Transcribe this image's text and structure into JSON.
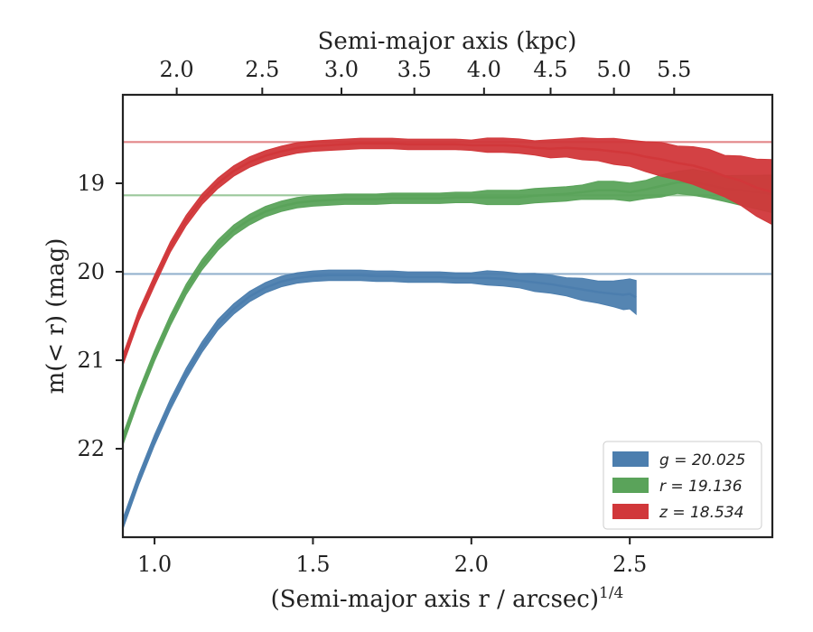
{
  "chart_data": {
    "type": "line",
    "xlabel": "(Semi-major axis r / arcsec)",
    "xlabel_sup": "1/4",
    "ylabel": "m(< r) (mag)",
    "top_xlabel": "Semi-major axis (kpc)",
    "xlim": [
      0.9,
      2.95
    ],
    "ylim": [
      23.0,
      18.0
    ],
    "y_inverted": true,
    "x_ticks": [
      1.0,
      1.5,
      2.0,
      2.5
    ],
    "x_tick_labels": [
      "1.0",
      "1.5",
      "2.0",
      "2.5"
    ],
    "y_ticks": [
      19,
      20,
      21,
      22
    ],
    "y_tick_labels": [
      "19",
      "20",
      "21",
      "22"
    ],
    "top_ticks_kpc": [
      2.0,
      2.5,
      3.0,
      3.5,
      4.0,
      4.5,
      5.0,
      5.5
    ],
    "top_tick_labels": [
      "2.0",
      "2.5",
      "3.0",
      "3.5",
      "4.0",
      "4.5",
      "5.0",
      "5.5"
    ],
    "top_tick_x_positions": [
      1.07,
      1.34,
      1.59,
      1.82,
      2.04,
      2.25,
      2.45,
      2.64
    ],
    "legend_position": "lower-right",
    "series": [
      {
        "key": "g",
        "name": "g = 20.025",
        "legend_label": "g = 20.025",
        "color": "#4c7eae",
        "asymptote": 20.025,
        "x": [
          0.9,
          0.95,
          1.0,
          1.05,
          1.1,
          1.15,
          1.2,
          1.25,
          1.3,
          1.35,
          1.4,
          1.45,
          1.5,
          1.55,
          1.6,
          1.65,
          1.7,
          1.75,
          1.8,
          1.85,
          1.9,
          1.95,
          2.0,
          2.05,
          2.1,
          2.15,
          2.2,
          2.25,
          2.3,
          2.35,
          2.4,
          2.45,
          2.48,
          2.5,
          2.52
        ],
        "y": [
          22.85,
          22.35,
          21.9,
          21.5,
          21.15,
          20.85,
          20.6,
          20.42,
          20.28,
          20.18,
          20.11,
          20.07,
          20.05,
          20.04,
          20.04,
          20.04,
          20.05,
          20.05,
          20.06,
          20.06,
          20.06,
          20.07,
          20.07,
          20.07,
          20.08,
          20.1,
          20.12,
          20.14,
          20.17,
          20.2,
          20.23,
          20.25,
          20.26,
          20.25,
          20.29
        ],
        "halfwidth": [
          0.02,
          0.02,
          0.02,
          0.02,
          0.02,
          0.02,
          0.02,
          0.02,
          0.02,
          0.02,
          0.02,
          0.02,
          0.02,
          0.02,
          0.02,
          0.02,
          0.02,
          0.02,
          0.02,
          0.02,
          0.02,
          0.02,
          0.02,
          0.03,
          0.03,
          0.03,
          0.04,
          0.04,
          0.04,
          0.05,
          0.05,
          0.06,
          0.07,
          0.07,
          0.08
        ]
      },
      {
        "key": "r",
        "name": "r = 19.136",
        "legend_label": "r = 19.136",
        "color": "#5aa35a",
        "asymptote": 19.136,
        "x": [
          0.9,
          0.95,
          1.0,
          1.05,
          1.1,
          1.15,
          1.2,
          1.25,
          1.3,
          1.35,
          1.4,
          1.45,
          1.5,
          1.55,
          1.6,
          1.65,
          1.7,
          1.75,
          1.8,
          1.85,
          1.9,
          1.95,
          2.0,
          2.05,
          2.1,
          2.15,
          2.2,
          2.25,
          2.3,
          2.35,
          2.4,
          2.45,
          2.5,
          2.55,
          2.6,
          2.65,
          2.7,
          2.75,
          2.8,
          2.85,
          2.9,
          2.95
        ],
        "y": [
          21.9,
          21.4,
          20.95,
          20.55,
          20.2,
          19.92,
          19.7,
          19.53,
          19.41,
          19.32,
          19.26,
          19.22,
          19.2,
          19.19,
          19.18,
          19.18,
          19.18,
          19.17,
          19.17,
          19.17,
          19.17,
          19.16,
          19.16,
          19.16,
          19.16,
          19.16,
          19.14,
          19.13,
          19.12,
          19.1,
          19.08,
          19.08,
          19.1,
          19.07,
          19.03,
          18.99,
          18.99,
          19.02,
          19.06,
          19.08,
          19.1,
          19.12
        ],
        "halfwidth": [
          0.02,
          0.02,
          0.02,
          0.02,
          0.02,
          0.02,
          0.02,
          0.02,
          0.02,
          0.02,
          0.02,
          0.02,
          0.02,
          0.02,
          0.02,
          0.02,
          0.02,
          0.02,
          0.02,
          0.02,
          0.02,
          0.02,
          0.02,
          0.03,
          0.03,
          0.03,
          0.03,
          0.03,
          0.03,
          0.03,
          0.04,
          0.04,
          0.04,
          0.04,
          0.05,
          0.05,
          0.06,
          0.06,
          0.06,
          0.07,
          0.08,
          0.09
        ]
      },
      {
        "key": "z",
        "name": "z = 18.534",
        "legend_label": "z = 18.534",
        "color": "#d1373a",
        "asymptote": 18.534,
        "x": [
          0.9,
          0.95,
          1.0,
          1.05,
          1.1,
          1.15,
          1.2,
          1.25,
          1.3,
          1.35,
          1.4,
          1.45,
          1.5,
          1.55,
          1.6,
          1.65,
          1.7,
          1.75,
          1.8,
          1.85,
          1.9,
          1.95,
          2.0,
          2.05,
          2.1,
          2.15,
          2.2,
          2.25,
          2.3,
          2.35,
          2.4,
          2.45,
          2.5,
          2.55,
          2.6,
          2.65,
          2.7,
          2.75,
          2.8,
          2.85,
          2.9,
          2.95
        ],
        "y": [
          21.0,
          20.5,
          20.1,
          19.72,
          19.42,
          19.18,
          19.0,
          18.86,
          18.76,
          18.69,
          18.64,
          18.6,
          18.58,
          18.57,
          18.56,
          18.55,
          18.55,
          18.55,
          18.56,
          18.56,
          18.56,
          18.56,
          18.57,
          18.57,
          18.57,
          18.58,
          18.6,
          18.61,
          18.6,
          18.61,
          18.62,
          18.64,
          18.66,
          18.7,
          18.73,
          18.77,
          18.8,
          18.85,
          18.92,
          18.97,
          19.05,
          19.1
        ],
        "halfwidth": [
          0.02,
          0.02,
          0.02,
          0.02,
          0.02,
          0.02,
          0.02,
          0.02,
          0.02,
          0.02,
          0.02,
          0.02,
          0.02,
          0.02,
          0.02,
          0.02,
          0.02,
          0.02,
          0.02,
          0.02,
          0.02,
          0.02,
          0.02,
          0.03,
          0.03,
          0.03,
          0.03,
          0.04,
          0.04,
          0.05,
          0.05,
          0.06,
          0.06,
          0.07,
          0.08,
          0.08,
          0.09,
          0.1,
          0.1,
          0.12,
          0.14,
          0.16
        ]
      }
    ]
  }
}
